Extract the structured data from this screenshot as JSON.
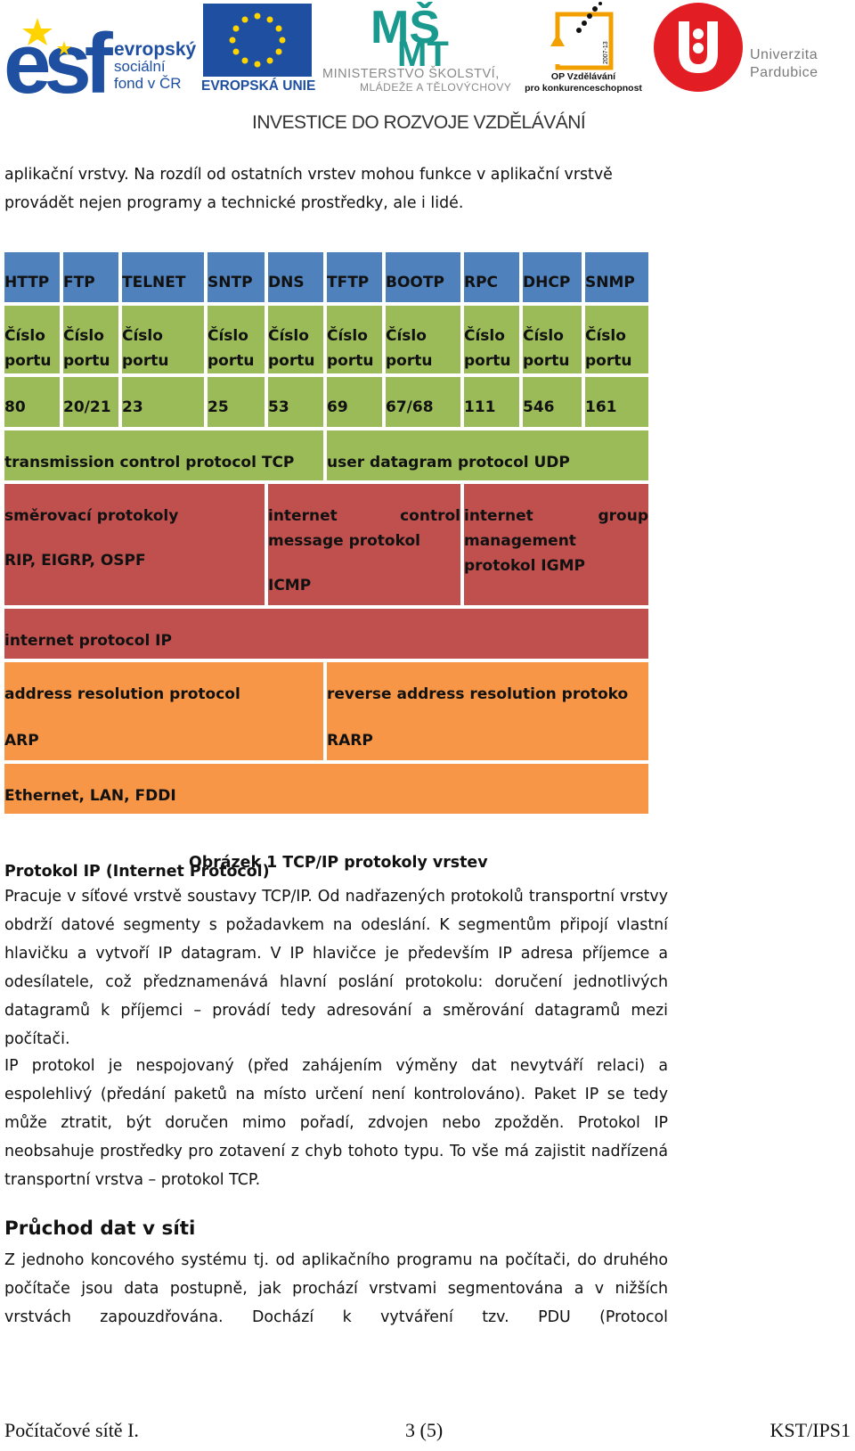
{
  "header": {
    "esf_line1": "evropský",
    "esf_line2": "sociální",
    "esf_line3": "fond v ČR",
    "eu_label": "EVROPSKÁ UNIE",
    "msmt_line1": "MINISTERSTVO ŠKOLSTVÍ,",
    "msmt_line2": "MLÁDEŽE A TĚLOVÝCHOVY",
    "op_line1": "OP Vzdělávání",
    "op_line2": "pro konkurenceschopnost",
    "op_years": "2007-13",
    "upce_line1": "Univerzita",
    "upce_line2": "Pardubice",
    "banner": "INVESTICE DO ROZVOJE VZDĚLÁVÁNÍ"
  },
  "intro": {
    "line1": "aplikační vrstvy. Na rozdíl od ostatních vrstev mohou funkce v aplikační vrstvě",
    "line2": "provádět nejen programy a technické prostředky, ale i lidé."
  },
  "table": {
    "protocols": [
      "HTTP",
      "FTP",
      "TELNET",
      "SNTP",
      "DNS",
      "TFTP",
      "BOOTP",
      "RPC",
      "DHCP",
      "SNMP"
    ],
    "port_label_1": "Číslo",
    "port_label_2": "portu",
    "ports": [
      "80",
      "20/21",
      "23",
      "25",
      "53",
      "69",
      "67/68",
      "111",
      "546",
      "161"
    ],
    "tcp": "transmission control protocol TCP",
    "udp": "user datagram protocol UDP",
    "routing_title": "směrovací protokoly",
    "routing_list": "RIP, EIGRP, OSPF",
    "icmp_line1a": "internet",
    "icmp_line1b": "control",
    "icmp_line2": "message protokol",
    "icmp_abbr": "ICMP",
    "igmp_line1a": "internet",
    "igmp_line1b": "group",
    "igmp_line2": "management",
    "igmp_line3": "protokol IGMP",
    "ip": "internet protocol IP",
    "arp_title": "address resolution protocol",
    "arp_abbr": "ARP",
    "rarp_title": "reverse address resolution protoko",
    "rarp_abbr": "RARP",
    "ethernet": "Ethernet, LAN, FDDI"
  },
  "caption": "Obrázek 1 TCP/IP protokoly vrstev",
  "section1": {
    "heading": "Protokol IP (Internet Protocol)",
    "p1": "Pracuje v síťové vrstvě soustavy TCP/IP. Od nadřazených protokolů transportní vrstvy obdrží datové segmenty s požadavkem na odeslání. K segmentům připojí vlastní hlavičku a vytvoří IP datagram. V IP hlavičce je především IP adresa příjemce a odesílatele, což předznamenává hlavní poslání protokolu: doručení jednotlivých datagramů k příjemci – provádí tedy adresování a směrování datagramů mezi počítači.",
    "p2": "IP protokol je nespojovaný (před zahájením výměny dat nevytváří relaci) a espolehlivý (předání paketů na místo určení není kontrolováno). Paket IP se tedy může ztratit, být doručen mimo pořadí, zdvojen nebo zpožděn. Protokol IP neobsahuje prostředky pro zotavení z chyb tohoto typu. To vše má zajistit nadřízená transportní vrstva – protokol TCP."
  },
  "section2": {
    "heading": "Průchod dat v síti",
    "p1": "Z jednoho koncového systému tj. od aplikačního programu na počítači, do druhého počítače jsou data postupně, jak prochází vrstvami segmentována a v nižších vrstvách zapouzdřována. Dochází k vytváření tzv. PDU (Protocol"
  },
  "footer": {
    "left": "Počítačové sítě I.",
    "center": "3 (5)",
    "right": "KST/IPS1"
  }
}
